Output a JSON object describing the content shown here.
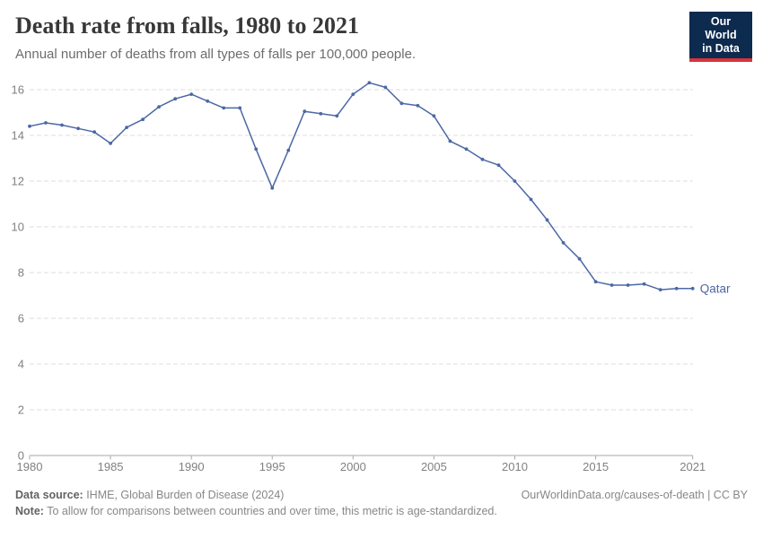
{
  "header": {
    "title": "Death rate from falls, 1980 to 2021",
    "subtitle": "Annual number of deaths from all types of falls per 100,000 people.",
    "logo_line1": "Our World",
    "logo_line2": "in Data"
  },
  "chart_data": {
    "type": "line",
    "title": "Death rate from falls, 1980 to 2021",
    "xlabel": "",
    "ylabel": "",
    "xlim": [
      1980,
      2021
    ],
    "ylim": [
      0,
      16.9
    ],
    "x_ticks": [
      1980,
      1985,
      1990,
      1995,
      2000,
      2005,
      2010,
      2015,
      2021
    ],
    "y_ticks": [
      0,
      2,
      4,
      6,
      8,
      10,
      12,
      14,
      16
    ],
    "grid": "horizontal-dashed",
    "legend_position": "end-of-line-label",
    "x": [
      1980,
      1981,
      1982,
      1983,
      1984,
      1985,
      1986,
      1987,
      1988,
      1989,
      1990,
      1991,
      1992,
      1993,
      1994,
      1995,
      1996,
      1997,
      1998,
      1999,
      2000,
      2001,
      2002,
      2003,
      2004,
      2005,
      2006,
      2007,
      2008,
      2009,
      2010,
      2011,
      2012,
      2013,
      2014,
      2015,
      2016,
      2017,
      2018,
      2019,
      2020,
      2021
    ],
    "series": [
      {
        "name": "Qatar",
        "color": "#4C68A5",
        "values": [
          14.4,
          14.55,
          14.45,
          14.3,
          14.15,
          13.65,
          14.35,
          14.7,
          15.25,
          15.6,
          15.8,
          15.5,
          15.2,
          15.2,
          13.4,
          11.7,
          13.35,
          15.05,
          14.95,
          14.85,
          15.8,
          16.3,
          16.1,
          15.4,
          15.3,
          14.85,
          13.75,
          13.4,
          12.95,
          12.7,
          12.0,
          11.2,
          10.3,
          9.3,
          8.6,
          7.6,
          7.45,
          7.45,
          7.5,
          7.25,
          7.3,
          7.3
        ]
      }
    ]
  },
  "colors": {
    "line": "#4C68A5",
    "grid": "#dcdcdc",
    "axis": "#a9a9a9",
    "tick_text": "#818181",
    "title": "#383838",
    "subtitle": "#6d6d6d",
    "logo_bg": "#0d2a4f",
    "logo_red": "#d7333c"
  },
  "footer": {
    "source_label": "Data source:",
    "source_text": " IHME, Global Burden of Disease (2024)",
    "credit": "OurWorldinData.org/causes-of-death | CC BY",
    "note_label": "Note:",
    "note_text": " To allow for comparisons between countries and over time, this metric is age-standardized."
  }
}
